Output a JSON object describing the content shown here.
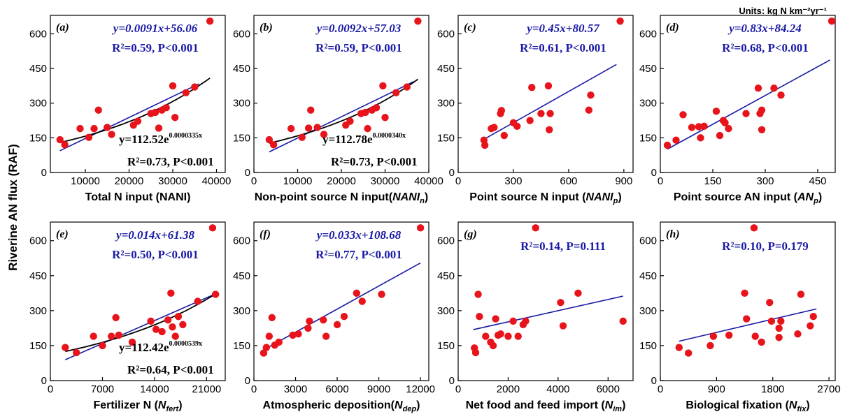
{
  "units_label": "Units: kg N km⁻²yr⁻¹",
  "y_axis_label": "Riverine AN flux (RAF)",
  "colors": {
    "points": "#e8141b",
    "linear_fit": "#1a1aa6",
    "exp_fit": "#000000",
    "eq_text": "#1a1aa6",
    "exp_text": "#000000"
  },
  "chart_data": [
    {
      "type": "scatter",
      "panel": "(a)",
      "xlabel": "Total N input (NANI)",
      "xlabel_sub": "",
      "xlim": [
        2000,
        42000
      ],
      "xticks": [
        10000,
        20000,
        30000,
        40000
      ],
      "ylim": [
        0,
        680
      ],
      "yticks": [
        0,
        150,
        300,
        450,
        600
      ],
      "linear_eq": "y=0.0091x+56.06",
      "linear_r2": "R²=0.59, P<0.001",
      "linear_fit": {
        "slope": 0.0091,
        "intercept": 56.06,
        "x_range": [
          4200,
          36000
        ]
      },
      "exp_eq": "y=112.52e",
      "exp_eq_power": "0.0000335x",
      "exp_r2": "R²=0.73, P<0.001",
      "exp_fit": {
        "a": 112.52,
        "b": 3.35e-05,
        "x_range": [
          4200,
          38500
        ]
      },
      "points": [
        [
          4200,
          142
        ],
        [
          5300,
          120
        ],
        [
          8800,
          190
        ],
        [
          10800,
          152
        ],
        [
          12000,
          190
        ],
        [
          13000,
          270
        ],
        [
          15000,
          195
        ],
        [
          16000,
          165
        ],
        [
          21000,
          205
        ],
        [
          22000,
          222
        ],
        [
          25000,
          255
        ],
        [
          26000,
          260
        ],
        [
          26800,
          192
        ],
        [
          27500,
          270
        ],
        [
          28500,
          280
        ],
        [
          30000,
          375
        ],
        [
          30500,
          238
        ],
        [
          33000,
          345
        ],
        [
          35000,
          370
        ],
        [
          38500,
          655
        ]
      ]
    },
    {
      "type": "scatter",
      "panel": "(b)",
      "xlabel": "Non-point source N input(",
      "xlabel_italic": "NANI",
      "xlabel_sub": "n",
      "xlabel_tail": ")",
      "xlim": [
        0,
        40000
      ],
      "xticks": [
        0,
        10000,
        20000,
        30000,
        40000
      ],
      "ylim": [
        0,
        680
      ],
      "yticks": [
        0,
        150,
        300,
        450,
        600
      ],
      "linear_eq": "y=0.0092x+57.03",
      "linear_r2": "R²=0.59, P<0.001",
      "linear_fit": {
        "slope": 0.0092,
        "intercept": 57.03,
        "x_range": [
          3500,
          36500
        ]
      },
      "exp_eq": "y=112.78e",
      "exp_eq_power": "0.0000340x",
      "exp_r2": "R²=0.73, P<0.001",
      "exp_fit": {
        "a": 112.78,
        "b": 3.4e-05,
        "x_range": [
          3500,
          37500
        ]
      },
      "points": [
        [
          3500,
          142
        ],
        [
          4500,
          120
        ],
        [
          8500,
          190
        ],
        [
          11000,
          152
        ],
        [
          12500,
          192
        ],
        [
          13000,
          270
        ],
        [
          14500,
          195
        ],
        [
          16000,
          165
        ],
        [
          21000,
          205
        ],
        [
          22000,
          222
        ],
        [
          24500,
          255
        ],
        [
          25500,
          260
        ],
        [
          26000,
          190
        ],
        [
          27000,
          270
        ],
        [
          28000,
          280
        ],
        [
          29500,
          375
        ],
        [
          30000,
          238
        ],
        [
          32500,
          345
        ],
        [
          35000,
          370
        ],
        [
          37500,
          655
        ]
      ]
    },
    {
      "type": "scatter",
      "panel": "(c)",
      "xlabel": "Point source N input (",
      "xlabel_italic": "NANI",
      "xlabel_sub": "p",
      "xlabel_tail": ")",
      "xlim": [
        0,
        950
      ],
      "xticks": [
        0,
        300,
        600,
        900
      ],
      "ylim": [
        0,
        680
      ],
      "yticks": [
        0,
        150,
        300,
        450,
        600
      ],
      "linear_eq": "y=0.45x+80.57",
      "linear_r2": "R²=0.61, P<0.001",
      "linear_fit": {
        "slope": 0.45,
        "intercept": 80.57,
        "x_range": [
          125,
          860
        ]
      },
      "points": [
        [
          140,
          140
        ],
        [
          145,
          118
        ],
        [
          180,
          190
        ],
        [
          195,
          195
        ],
        [
          230,
          255
        ],
        [
          235,
          268
        ],
        [
          250,
          160
        ],
        [
          300,
          215
        ],
        [
          320,
          200
        ],
        [
          390,
          225
        ],
        [
          400,
          368
        ],
        [
          450,
          255
        ],
        [
          490,
          375
        ],
        [
          495,
          185
        ],
        [
          500,
          255
        ],
        [
          710,
          270
        ],
        [
          720,
          335
        ],
        [
          880,
          655
        ]
      ]
    },
    {
      "type": "scatter",
      "panel": "(d)",
      "xlabel": "Point source AN input (",
      "xlabel_italic": "AN",
      "xlabel_sub": "p",
      "xlabel_tail": ")",
      "xlim": [
        0,
        500
      ],
      "xticks": [
        0,
        150,
        300,
        450
      ],
      "ylim": [
        0,
        680
      ],
      "yticks": [
        0,
        150,
        300,
        450,
        600
      ],
      "linear_eq": "y=0.83x+84.24",
      "linear_r2": "R²=0.68, P<0.001",
      "linear_fit": {
        "slope": 0.83,
        "intercept": 84.24,
        "x_range": [
          20,
          485
        ]
      },
      "points": [
        [
          20,
          118
        ],
        [
          45,
          140
        ],
        [
          65,
          250
        ],
        [
          90,
          195
        ],
        [
          110,
          198
        ],
        [
          115,
          150
        ],
        [
          125,
          200
        ],
        [
          160,
          265
        ],
        [
          170,
          160
        ],
        [
          180,
          225
        ],
        [
          185,
          215
        ],
        [
          195,
          190
        ],
        [
          245,
          255
        ],
        [
          280,
          365
        ],
        [
          285,
          255
        ],
        [
          290,
          270
        ],
        [
          290,
          185
        ],
        [
          325,
          365
        ],
        [
          345,
          335
        ],
        [
          490,
          655
        ]
      ]
    },
    {
      "type": "scatter",
      "panel": "(e)",
      "xlabel": "Fertilizer N (",
      "xlabel_italic": "N",
      "xlabel_sub": "fert",
      "xlabel_tail": ")",
      "xlim": [
        0,
        23500
      ],
      "xticks": [
        0,
        7000,
        14000,
        21000
      ],
      "ylim": [
        0,
        680
      ],
      "yticks": [
        0,
        150,
        300,
        450,
        600
      ],
      "linear_eq": "y=0.014x+61.38",
      "linear_r2": "R²=0.50, P<0.001",
      "linear_fit": {
        "slope": 0.014,
        "intercept": 61.38,
        "x_range": [
          2000,
          22500
        ]
      },
      "exp_eq": "y=112.42e",
      "exp_eq_power": "0.0000539x",
      "exp_r2": "R²=0.64, P<0.001",
      "exp_fit": {
        "a": 112.42,
        "b": 5.39e-05,
        "x_range": [
          2000,
          22000
        ]
      },
      "points": [
        [
          2000,
          142
        ],
        [
          3500,
          120
        ],
        [
          5800,
          190
        ],
        [
          7000,
          150
        ],
        [
          8200,
          190
        ],
        [
          8800,
          270
        ],
        [
          9200,
          195
        ],
        [
          11000,
          165
        ],
        [
          13500,
          255
        ],
        [
          14200,
          220
        ],
        [
          15000,
          210
        ],
        [
          15800,
          260
        ],
        [
          16200,
          375
        ],
        [
          16400,
          230
        ],
        [
          16800,
          190
        ],
        [
          17200,
          275
        ],
        [
          17800,
          240
        ],
        [
          19800,
          340
        ],
        [
          22200,
          370
        ],
        [
          21800,
          655
        ]
      ]
    },
    {
      "type": "scatter",
      "panel": "(f)",
      "xlabel": "Atmospheric deposition(",
      "xlabel_italic": "N",
      "xlabel_sub": "dep",
      "xlabel_tail": ")",
      "xlim": [
        0,
        12600
      ],
      "xticks": [
        0,
        3000,
        6000,
        9000,
        12000
      ],
      "ylim": [
        0,
        680
      ],
      "yticks": [
        0,
        150,
        300,
        450,
        600
      ],
      "linear_eq": "y=0.033x+108.68",
      "linear_r2": "R²=0.77, P<0.001",
      "linear_fit": {
        "slope": 0.033,
        "intercept": 108.68,
        "x_range": [
          500,
          12000
        ]
      },
      "points": [
        [
          700,
          118
        ],
        [
          900,
          142
        ],
        [
          1100,
          190
        ],
        [
          1300,
          270
        ],
        [
          1500,
          152
        ],
        [
          1800,
          165
        ],
        [
          2800,
          195
        ],
        [
          3200,
          200
        ],
        [
          3900,
          225
        ],
        [
          4000,
          255
        ],
        [
          5000,
          260
        ],
        [
          5200,
          190
        ],
        [
          6000,
          240
        ],
        [
          6500,
          275
        ],
        [
          7400,
          375
        ],
        [
          7800,
          340
        ],
        [
          9200,
          370
        ],
        [
          12000,
          655
        ]
      ]
    },
    {
      "type": "scatter",
      "panel": "(g)",
      "xlabel": "Net food and feed import (",
      "xlabel_italic": "N",
      "xlabel_sub": "im",
      "xlabel_tail": ")",
      "xlim": [
        0,
        7000
      ],
      "xticks": [
        0,
        2000,
        4000,
        6000
      ],
      "ylim": [
        0,
        680
      ],
      "yticks": [
        0,
        150,
        300,
        450,
        600
      ],
      "linear_eq": "",
      "linear_r2": "R²=0.14, P=0.111",
      "linear_fit": {
        "slope": 0.024,
        "intercept": 204,
        "x_range": [
          600,
          6600
        ]
      },
      "points": [
        [
          650,
          140
        ],
        [
          700,
          120
        ],
        [
          800,
          370
        ],
        [
          850,
          275
        ],
        [
          1100,
          190
        ],
        [
          1300,
          165
        ],
        [
          1400,
          150
        ],
        [
          1500,
          265
        ],
        [
          1600,
          195
        ],
        [
          1700,
          200
        ],
        [
          2000,
          190
        ],
        [
          2200,
          255
        ],
        [
          2400,
          190
        ],
        [
          2600,
          240
        ],
        [
          2700,
          255
        ],
        [
          3100,
          655
        ],
        [
          4100,
          335
        ],
        [
          4200,
          235
        ],
        [
          4800,
          375
        ],
        [
          6600,
          255
        ]
      ]
    },
    {
      "type": "scatter",
      "panel": "(h)",
      "xlabel": "Biological fixation (",
      "xlabel_italic": "N",
      "xlabel_sub": "fix",
      "xlabel_tail": ")",
      "xlim": [
        0,
        2800
      ],
      "xticks": [
        0,
        900,
        1800,
        2700
      ],
      "ylim": [
        0,
        680
      ],
      "yticks": [
        0,
        150,
        300,
        450,
        600
      ],
      "linear_eq": "",
      "linear_r2": "R²=0.10, P=0.179",
      "linear_fit": {
        "slope": 0.063,
        "intercept": 150,
        "x_range": [
          300,
          2500
        ]
      },
      "points": [
        [
          300,
          142
        ],
        [
          450,
          118
        ],
        [
          800,
          150
        ],
        [
          850,
          190
        ],
        [
          1100,
          195
        ],
        [
          1350,
          375
        ],
        [
          1380,
          265
        ],
        [
          1500,
          655
        ],
        [
          1520,
          190
        ],
        [
          1620,
          165
        ],
        [
          1750,
          335
        ],
        [
          1780,
          255
        ],
        [
          1900,
          185
        ],
        [
          1900,
          225
        ],
        [
          1930,
          255
        ],
        [
          2200,
          200
        ],
        [
          2250,
          370
        ],
        [
          2400,
          235
        ],
        [
          2450,
          275
        ]
      ]
    }
  ]
}
